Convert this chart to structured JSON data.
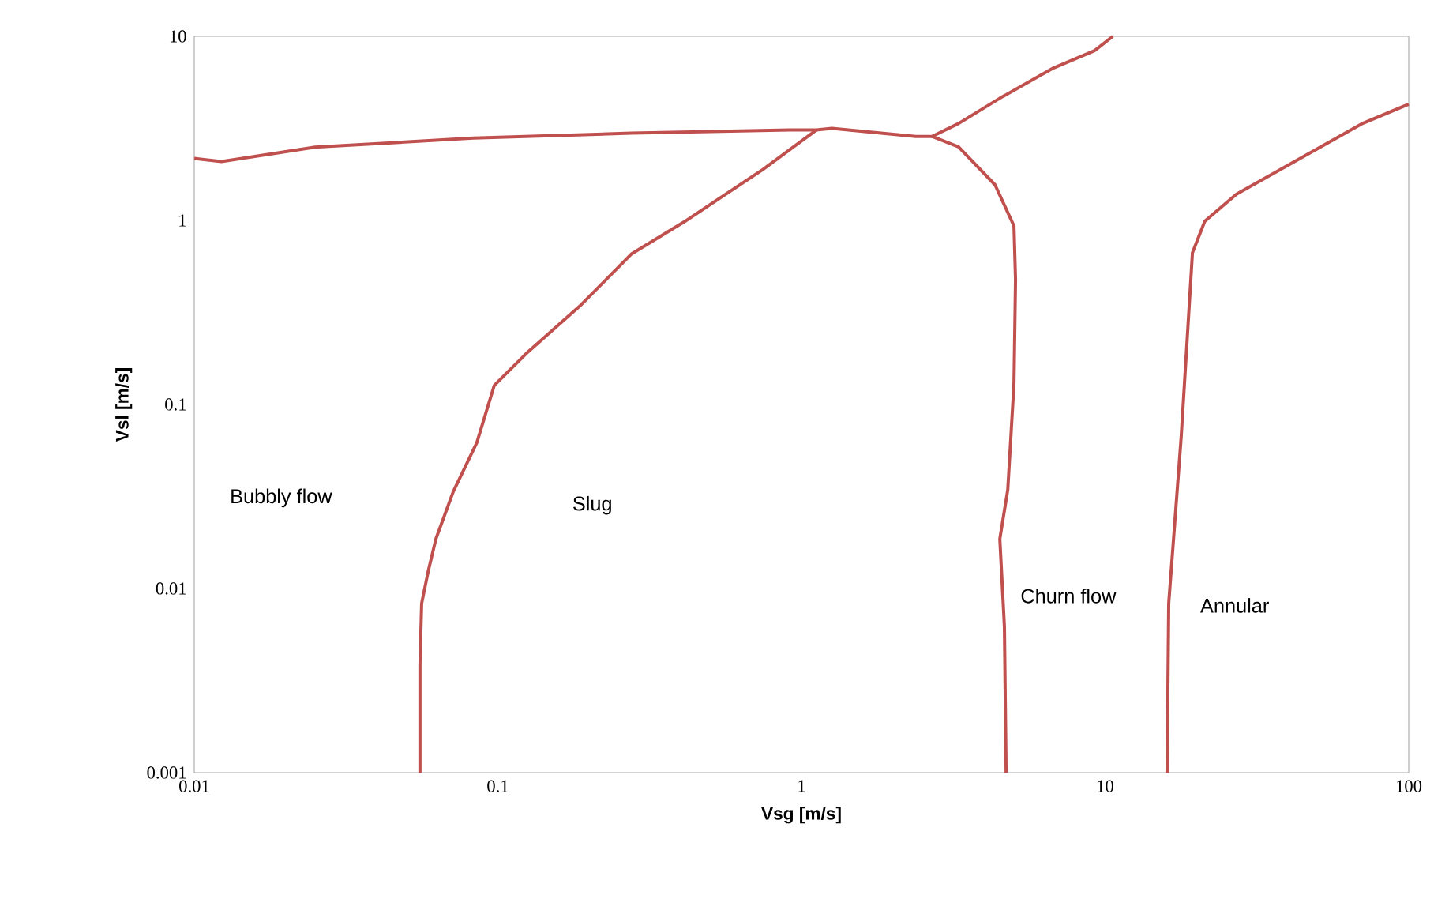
{
  "chart_data": {
    "type": "line",
    "log": "xy",
    "xlabel": "Vsg [m/s]",
    "ylabel": "Vsl [m/s]",
    "xlim": [
      0.01,
      100
    ],
    "ylim": [
      0.001,
      10
    ],
    "xticks": [
      0.01,
      0.1,
      1,
      10,
      100
    ],
    "yticks": [
      0.001,
      0.01,
      0.1,
      1,
      10
    ],
    "marker": "none",
    "line_style": "solid",
    "series": [
      {
        "color": "#c0504d",
        "x": [
          0.01,
          0.0123,
          0.025,
          0.083,
          0.276,
          0.914,
          1.12,
          1.26,
          2.38,
          2.69,
          3.29,
          4.5,
          6.76,
          9.23,
          10.6
        ],
        "values": [
          2.17,
          2.09,
          2.5,
          2.8,
          2.98,
          3.1,
          3.1,
          3.16,
          2.86,
          2.86,
          3.36,
          4.61,
          6.73,
          8.36,
          10
        ]
      },
      {
        "color": "#c0504d",
        "x": [
          0.0554,
          0.0554,
          0.0561,
          0.0589,
          0.0625,
          0.0713,
          0.0853,
          0.0973,
          0.124,
          0.186,
          0.276,
          0.41,
          0.746,
          1.12
        ],
        "values": [
          0.001,
          0.0039,
          0.0083,
          0.0123,
          0.0186,
          0.0336,
          0.0622,
          0.127,
          0.189,
          0.342,
          0.659,
          0.98,
          1.89,
          3.1
        ]
      },
      {
        "color": "#c0504d",
        "x": [
          2.69,
          3.29,
          4.34,
          5.01,
          5.07,
          5.01,
          4.78,
          4.5,
          4.66,
          4.72
        ],
        "values": [
          2.86,
          2.51,
          1.56,
          0.933,
          0.476,
          0.129,
          0.0344,
          0.0186,
          0.0062,
          0.001
        ]
      },
      {
        "color": "#c0504d",
        "x": [
          100,
          70.6,
          27.1,
          21.3,
          19.4,
          18.7,
          17.8,
          16.2,
          16.0
        ],
        "values": [
          4.28,
          3.37,
          1.39,
          0.99,
          0.667,
          0.248,
          0.066,
          0.0083,
          0.001
        ]
      }
    ],
    "annotations": [
      "Bubbly flow",
      "Slug",
      "Churn flow",
      "Annular"
    ]
  }
}
